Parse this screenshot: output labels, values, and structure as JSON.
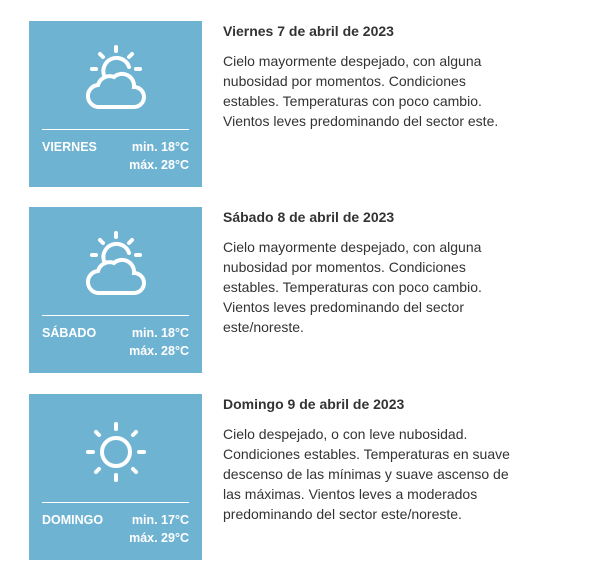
{
  "days": [
    {
      "name": "VIERNES",
      "min": "min. 18°C",
      "max": "máx. 28°C",
      "icon": "sun-cloud-icon",
      "title": "Viernes 7 de abril de 2023",
      "desc": "Cielo mayormente despejado, con alguna nubosidad por momentos. Condiciones estables. Temperaturas con poco cambio. Vientos leves predominando del sector este."
    },
    {
      "name": "SÁBADO",
      "min": "min. 18°C",
      "max": "máx. 28°C",
      "icon": "sun-cloud-icon",
      "title": "Sábado 8 de abril de 2023",
      "desc": "Cielo mayormente despejado, con alguna nubosidad por momentos. Condiciones estables. Temperaturas con poco cambio. Vientos leves predominando del sector este/noreste."
    },
    {
      "name": "DOMINGO",
      "min": "min. 17°C",
      "max": "máx. 29°C",
      "icon": "sun-icon",
      "title": "Domingo 9 de abril de 2023",
      "desc": "Cielo despejado, o con leve nubosidad. Condiciones estables. Temperaturas en suave descenso de las mínimas y suave ascenso de las máximas. Vientos leves a moderados predominando del sector este/noreste."
    }
  ],
  "colors": {
    "card": "#6fb3d3"
  }
}
